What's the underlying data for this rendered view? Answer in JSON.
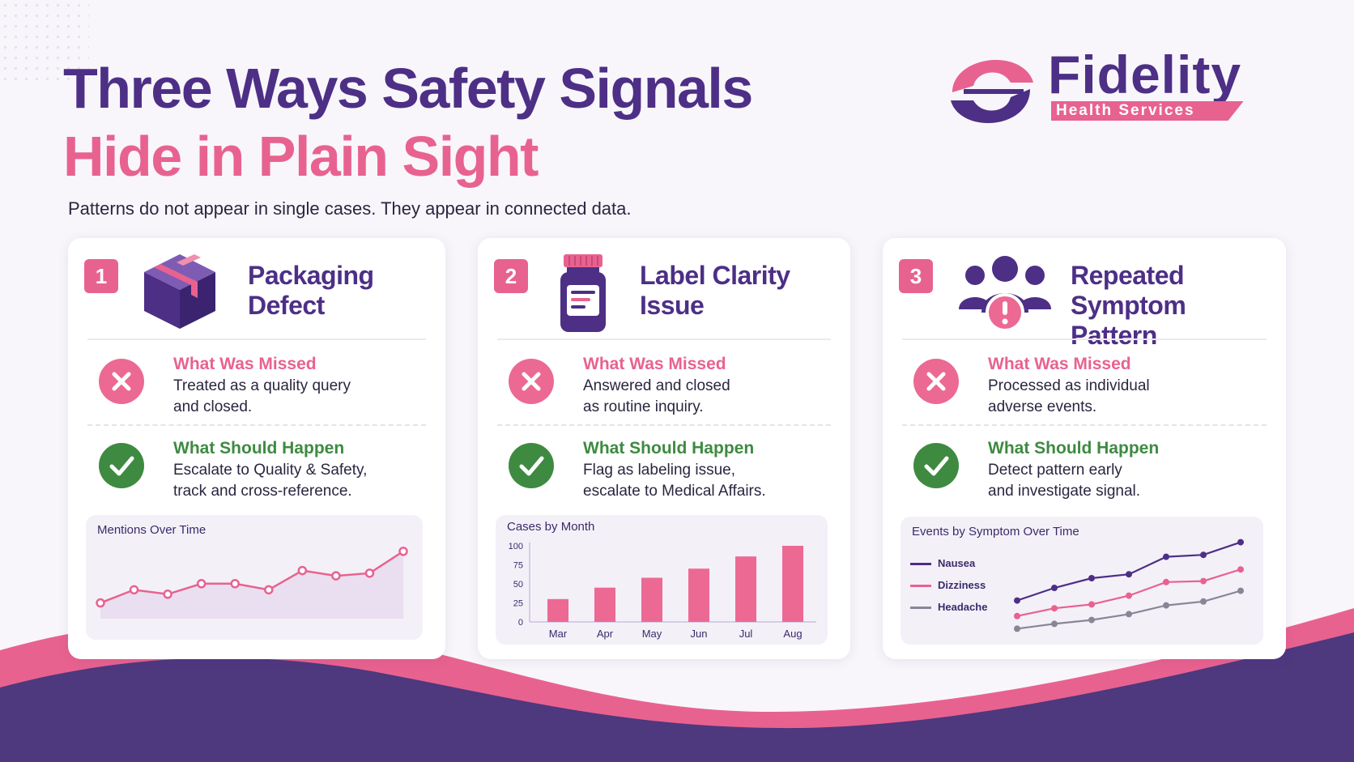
{
  "title": {
    "line1": "Three Ways Safety Signals",
    "line2": "Hide in Plain Sight",
    "subtitle": "Patterns do not appear in single cases. They appear in connected data."
  },
  "logo": {
    "name": "Fidelity",
    "tagline": "Health Services"
  },
  "colors": {
    "purple": "#4d2f86",
    "pink": "#e8628f",
    "green": "#3e8a41",
    "gray": "#8a8596"
  },
  "cards": [
    {
      "number": "1",
      "title_line1": "Packaging",
      "title_line2": "Defect",
      "icon": "package-box-icon",
      "missed_label": "What Was Missed",
      "missed_line1": "Treated as a quality query",
      "missed_line2": "and closed.",
      "should_label": "What Should Happen",
      "should_line1": "Escalate to Quality & Safety,",
      "should_line2": "track and cross-reference."
    },
    {
      "number": "2",
      "title_line1": "Label Clarity",
      "title_line2": "Issue",
      "icon": "medicine-bottle-icon",
      "missed_label": "What Was Missed",
      "missed_line1": "Answered and closed",
      "missed_line2": "as routine inquiry.",
      "should_label": "What Should Happen",
      "should_line1": "Flag as labeling issue,",
      "should_line2": "escalate to Medical Affairs."
    },
    {
      "number": "3",
      "title_line1": "Repeated Symptom",
      "title_line2": "Pattern",
      "icon": "people-alert-icon",
      "missed_label": "What Was Missed",
      "missed_line1": "Processed as individual",
      "missed_line2": "adverse events.",
      "should_label": "What Should Happen",
      "should_line1": "Detect pattern early",
      "should_line2": "and investigate signal."
    }
  ],
  "chart_data": [
    {
      "type": "area",
      "title": "Mentions Over Time",
      "x": [
        1,
        2,
        3,
        4,
        5,
        6,
        7,
        8,
        9,
        10
      ],
      "values": [
        18,
        33,
        28,
        40,
        40,
        33,
        55,
        49,
        52,
        77
      ],
      "ylim": [
        0,
        100
      ],
      "color": "#e8628f"
    },
    {
      "type": "bar",
      "title": "Cases by Month",
      "categories": [
        "Mar",
        "Apr",
        "May",
        "Jun",
        "Jul",
        "Aug"
      ],
      "values": [
        30,
        45,
        58,
        70,
        86,
        100
      ],
      "yticks": [
        "100",
        "75",
        "50",
        "25",
        "0"
      ],
      "ylim": [
        0,
        100
      ],
      "color": "#ec6994"
    },
    {
      "type": "line",
      "title": "Events by Symptom Over Time",
      "x": [
        1,
        2,
        3,
        4,
        5,
        6,
        7
      ],
      "ylim": [
        0,
        100
      ],
      "series": [
        {
          "name": "Nausea",
          "color": "#4d2f86",
          "values": [
            32,
            45,
            55,
            59,
            77,
            79,
            92
          ]
        },
        {
          "name": "Dizziness",
          "color": "#e8628f",
          "values": [
            16,
            24,
            28,
            37,
            51,
            52,
            64
          ]
        },
        {
          "name": "Headache",
          "color": "#8a8596",
          "values": [
            3,
            8,
            12,
            18,
            27,
            31,
            42
          ]
        }
      ]
    }
  ]
}
